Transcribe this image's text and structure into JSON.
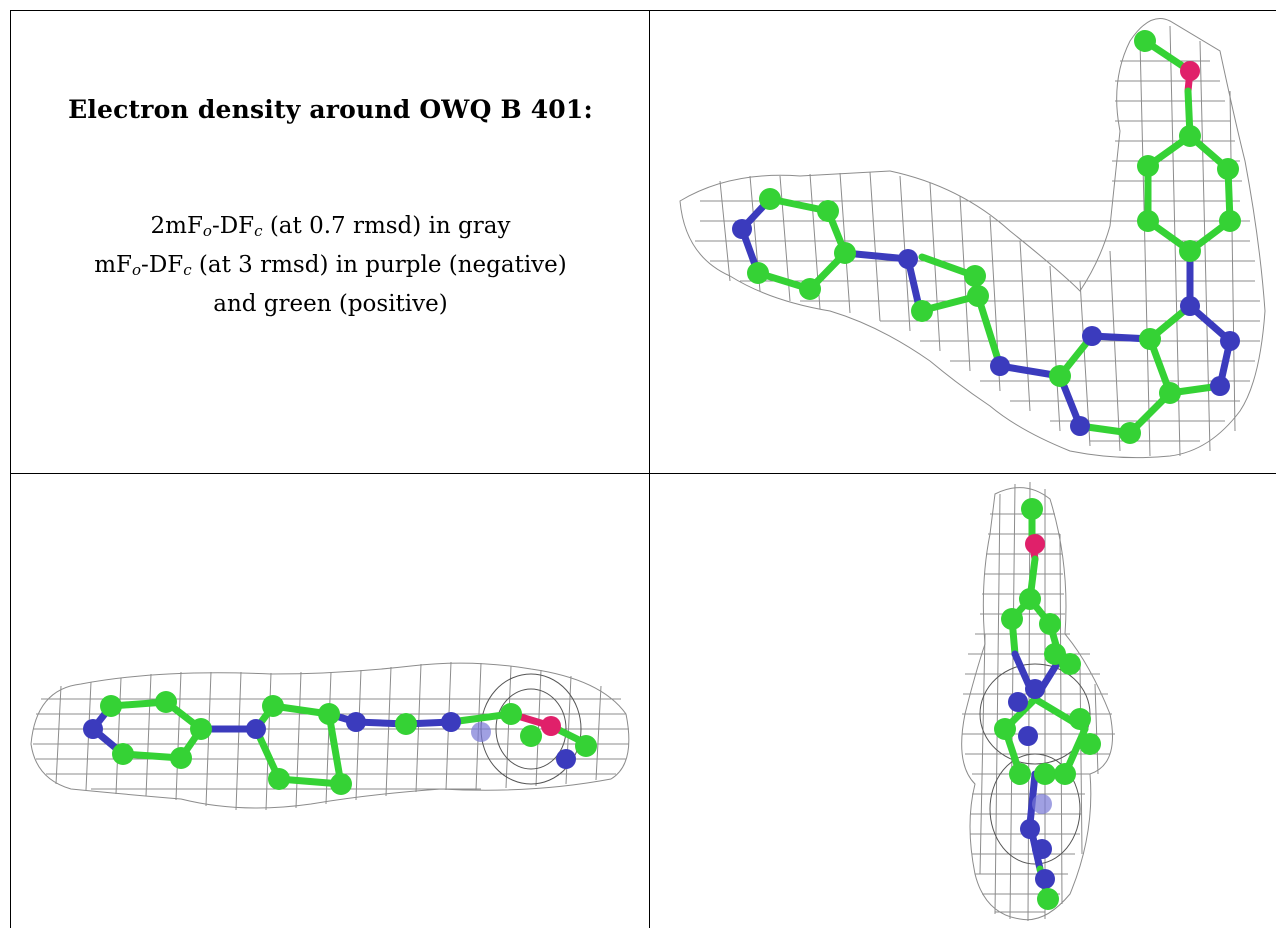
{
  "panel_text": {
    "title": "Electron density around OWQ B 401:",
    "line1_a": "2mF",
    "line1_sub1": "o",
    "line1_b": "-DF",
    "line1_sub2": "c",
    "line1_c": " (at 0.7 rmsd) in gray",
    "line2_a": "mF",
    "line2_sub1": "o",
    "line2_b": "-DF",
    "line2_sub2": "c",
    "line2_c": " (at 3 rmsd) in purple (negative)",
    "line3": "and green (positive)"
  },
  "colors": {
    "carbon": "#35d235",
    "nitrogen": "#3b3bbd",
    "oxygen": "#e0206a",
    "density_mesh": "#8c8c8c",
    "border": "#000000"
  },
  "views": [
    {
      "name": "top-right",
      "description_icon": "molecule-mesh-view"
    },
    {
      "name": "bottom-left",
      "description_icon": "molecule-mesh-view"
    },
    {
      "name": "bottom-right",
      "description_icon": "molecule-mesh-view"
    }
  ]
}
